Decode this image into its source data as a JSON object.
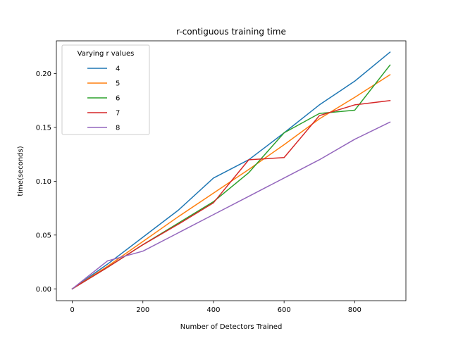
{
  "chart_data": {
    "type": "line",
    "title": "r-contiguous training time",
    "xlabel": "Number of Detectors Trained",
    "ylabel": "time(seconds)",
    "x": [
      0,
      100,
      200,
      300,
      400,
      500,
      600,
      700,
      800,
      900
    ],
    "xlim": [
      -45,
      945
    ],
    "ylim": [
      -0.011,
      0.2305
    ],
    "xticks": [
      0,
      200,
      400,
      600,
      800
    ],
    "xtick_labels": [
      "0",
      "200",
      "400",
      "600",
      "800"
    ],
    "yticks": [
      0.0,
      0.05,
      0.1,
      0.15,
      0.2
    ],
    "ytick_labels": [
      "0.00",
      "0.05",
      "0.10",
      "0.15",
      "0.20"
    ],
    "grid": false,
    "legend": {
      "title": "Varying r values",
      "placement": "top-left"
    },
    "series": [
      {
        "name": "4",
        "color": "#1f77b4",
        "values": [
          0.0,
          0.023,
          0.048,
          0.073,
          0.103,
          0.12,
          0.145,
          0.171,
          0.193,
          0.22
        ]
      },
      {
        "name": "5",
        "color": "#ff7f0e",
        "values": [
          0.0,
          0.021,
          0.044,
          0.067,
          0.089,
          0.111,
          0.134,
          0.158,
          0.178,
          0.199
        ]
      },
      {
        "name": "6",
        "color": "#2ca02c",
        "values": [
          0.0,
          0.02,
          0.041,
          0.061,
          0.081,
          0.108,
          0.145,
          0.163,
          0.166,
          0.208
        ]
      },
      {
        "name": "7",
        "color": "#d62728",
        "values": [
          0.0,
          0.02,
          0.041,
          0.06,
          0.08,
          0.12,
          0.122,
          0.161,
          0.171,
          0.175
        ]
      },
      {
        "name": "8",
        "color": "#9467bd",
        "values": [
          0.0,
          0.026,
          0.035,
          0.052,
          0.069,
          0.086,
          0.103,
          0.12,
          0.139,
          0.155
        ]
      }
    ]
  }
}
